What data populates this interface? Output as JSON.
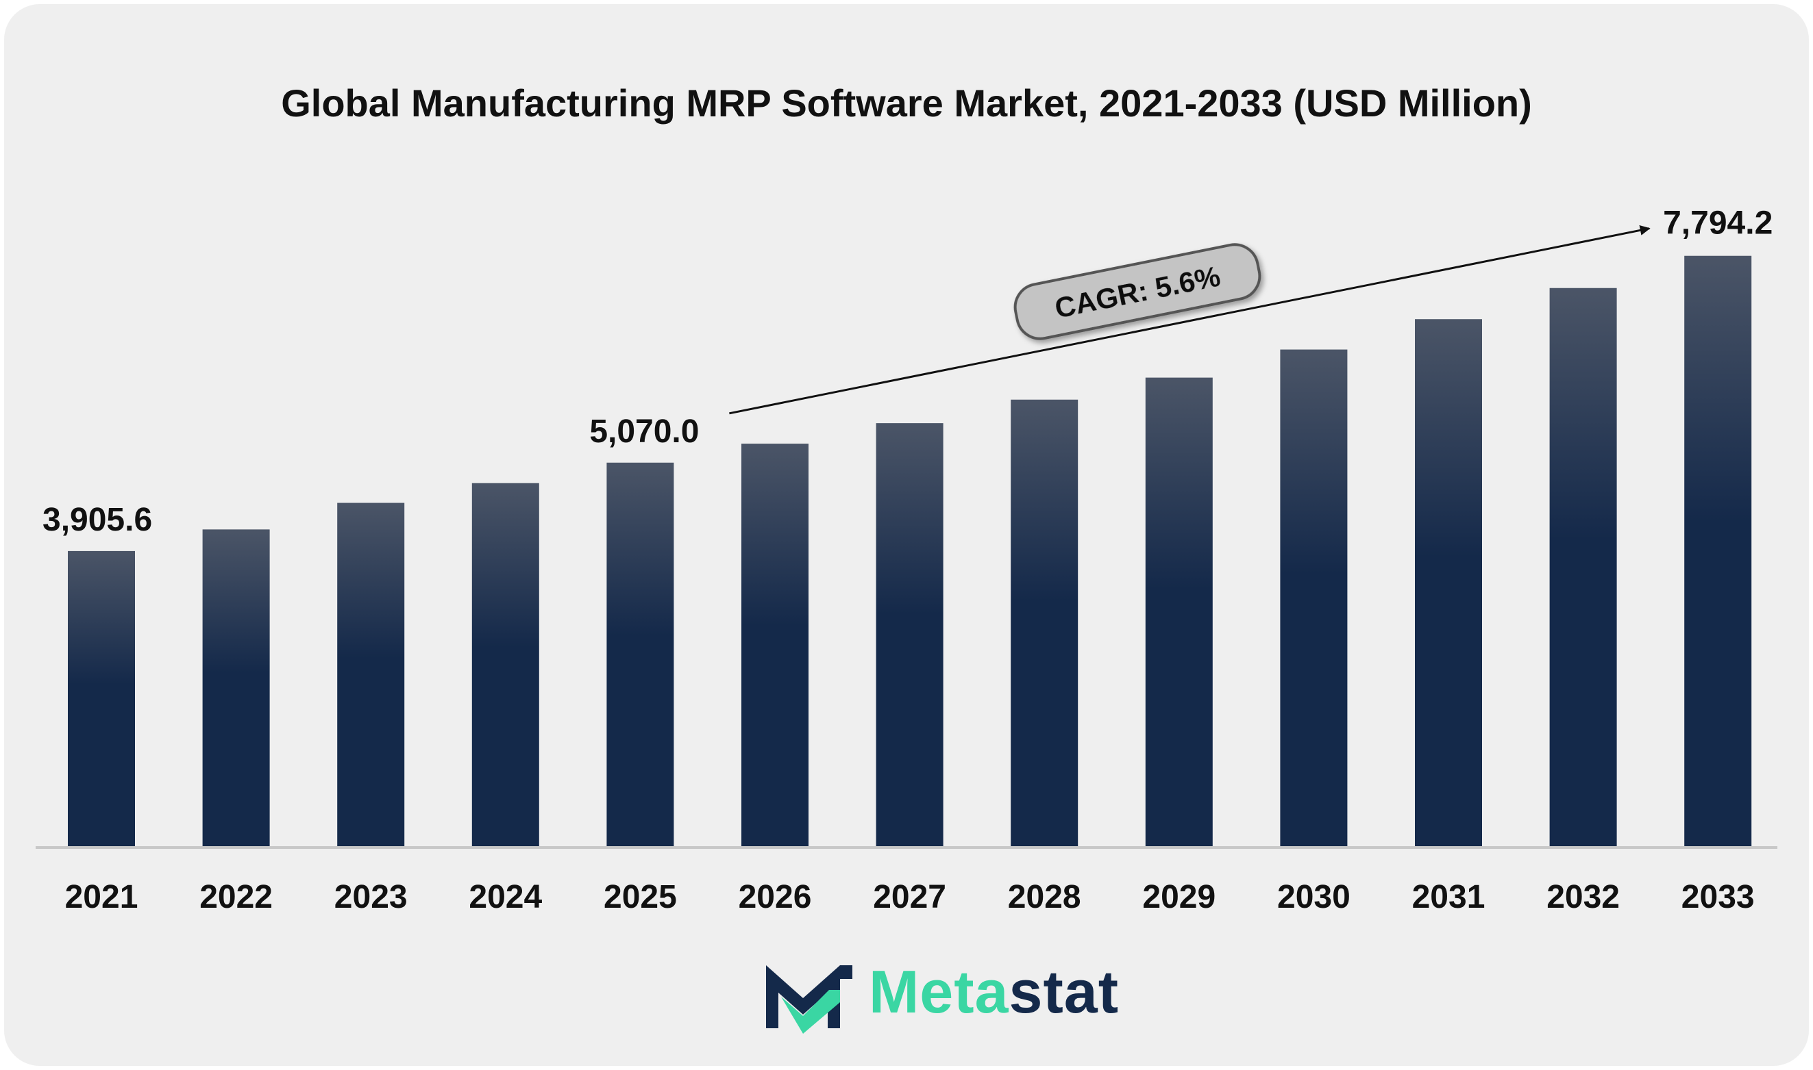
{
  "chart_data": {
    "type": "bar",
    "title": "Global Manufacturing MRP Software Market, 2021-2033 (USD Million)",
    "xlabel": "",
    "ylabel": "",
    "categories": [
      "2021",
      "2022",
      "2023",
      "2024",
      "2025",
      "2026",
      "2027",
      "2028",
      "2029",
      "2030",
      "2031",
      "2032",
      "2033"
    ],
    "values": [
      3905.6,
      4190,
      4540,
      4800,
      5070.0,
      5320,
      5590,
      5900,
      6190,
      6560,
      6960,
      7370,
      7794.2
    ],
    "data_labels": [
      {
        "category": "2021",
        "text": "3,905.6"
      },
      {
        "category": "2025",
        "text": "5,070.0"
      },
      {
        "category": "2033",
        "text": "7,794.2"
      }
    ],
    "ylim": [
      0,
      9000
    ],
    "grid": false,
    "annotation": {
      "text": "CAGR: 5.6%",
      "from": "2025",
      "to": "2033"
    },
    "colors": {
      "bar_top": "#4b5567",
      "bar_bottom": "#14294a",
      "background": "#efefef",
      "axis": "#c8c8c8"
    }
  },
  "brand": {
    "name_part1": "Meta",
    "name_part2": "stat",
    "colors": {
      "accent": "#3ad6a3",
      "dark": "#14294a"
    },
    "icon": "metastat-m-logo-icon"
  }
}
